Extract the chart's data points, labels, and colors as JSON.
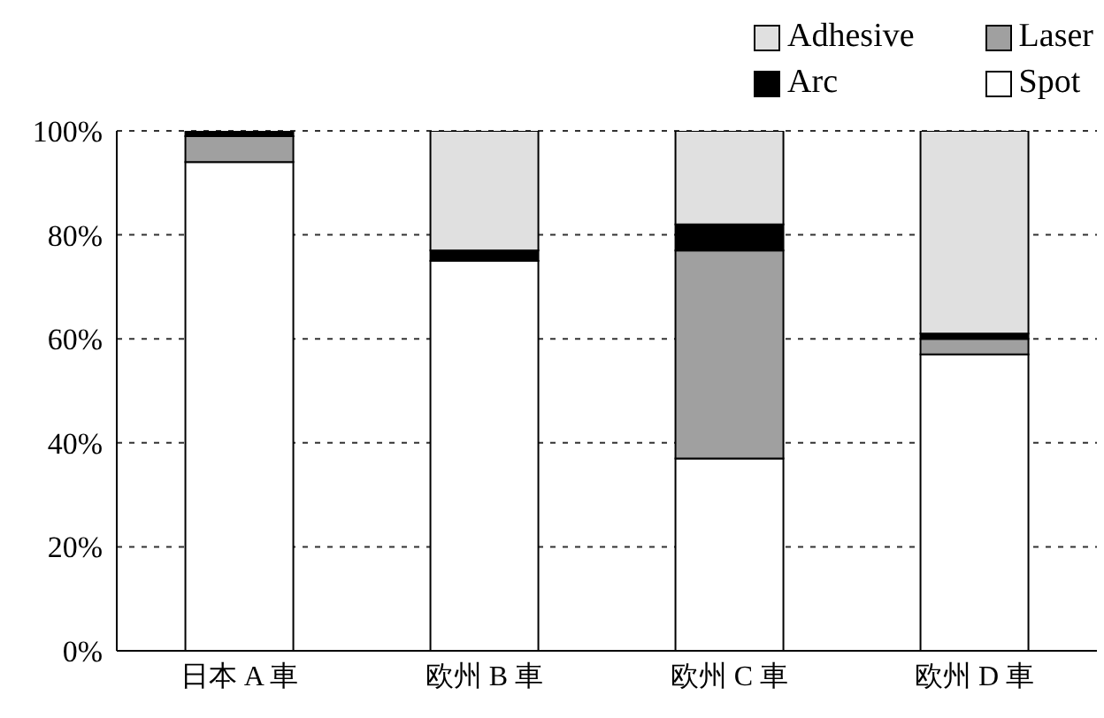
{
  "chart_data": {
    "type": "bar",
    "stacked": true,
    "categories": [
      "日本 A 車",
      "欧州 B 車",
      "欧州 C 車",
      "欧州 D 車"
    ],
    "series": [
      {
        "name": "Spot",
        "color": "#ffffff",
        "values": [
          94,
          75,
          37,
          57
        ]
      },
      {
        "name": "Laser",
        "color": "#a0a0a0",
        "values": [
          5,
          0,
          40,
          3
        ]
      },
      {
        "name": "Arc",
        "color": "#000000",
        "values": [
          1,
          2,
          5,
          1
        ]
      },
      {
        "name": "Adhesive",
        "color": "#e0e0e0",
        "values": [
          0,
          23,
          18,
          39
        ]
      }
    ],
    "ylim": [
      0,
      100
    ],
    "yticks": [
      {
        "value": 0,
        "label": "0%"
      },
      {
        "value": 20,
        "label": "20%"
      },
      {
        "value": 40,
        "label": "40%"
      },
      {
        "value": 60,
        "label": "60%"
      },
      {
        "value": 80,
        "label": "80%"
      },
      {
        "value": 100,
        "label": "100%"
      }
    ],
    "grid": "y",
    "legend": "top right"
  }
}
